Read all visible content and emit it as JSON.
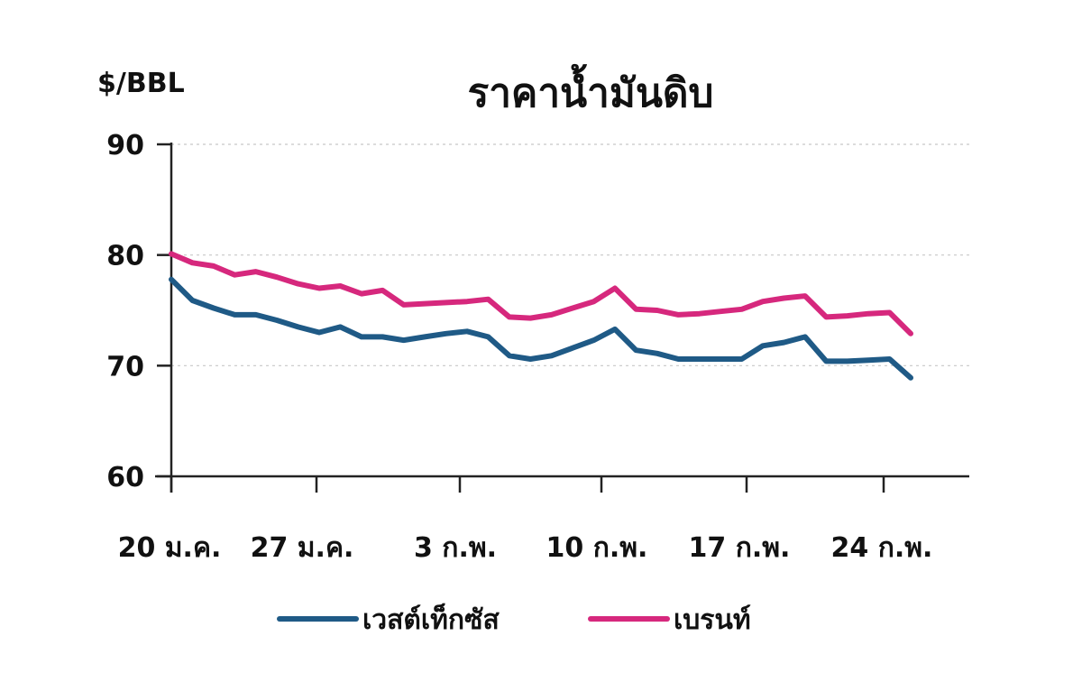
{
  "chart_data": {
    "type": "line",
    "title": "ราคาน้ำมันดิบ",
    "ylabel": "$/BBL",
    "xlabel": "",
    "ylim": [
      60,
      90
    ],
    "yticks": [
      "60",
      "70",
      "80",
      "90"
    ],
    "xticks": [
      "20 ม.ค.",
      "27 ม.ค.",
      "3 ก.พ.",
      "10 ก.พ.",
      "17 ก.พ.",
      "24 ก.พ."
    ],
    "grid": true,
    "legend_position": "bottom",
    "series": [
      {
        "name": "เวสต์เท็กซัส",
        "color": "#1f5a86",
        "values": [
          77.8,
          75.9,
          75.2,
          74.6,
          74.6,
          74.1,
          73.5,
          73.0,
          73.5,
          72.6,
          72.6,
          72.3,
          72.6,
          72.9,
          73.1,
          72.6,
          70.9,
          70.6,
          70.9,
          71.6,
          72.3,
          73.3,
          71.4,
          71.1,
          70.6,
          70.6,
          70.6,
          70.6,
          71.8,
          72.1,
          72.6,
          70.4,
          70.4,
          70.5,
          70.6,
          68.9
        ]
      },
      {
        "name": "เบรนท์",
        "color": "#d6287d",
        "values": [
          80.1,
          79.3,
          79.0,
          78.2,
          78.5,
          78.0,
          77.4,
          77.0,
          77.2,
          76.5,
          76.8,
          75.5,
          75.6,
          75.7,
          75.8,
          76.0,
          74.4,
          74.3,
          74.6,
          75.2,
          75.8,
          77.0,
          75.1,
          75.0,
          74.6,
          74.7,
          74.9,
          75.1,
          75.8,
          76.1,
          76.3,
          74.4,
          74.5,
          74.7,
          74.8,
          72.9
        ]
      }
    ]
  }
}
